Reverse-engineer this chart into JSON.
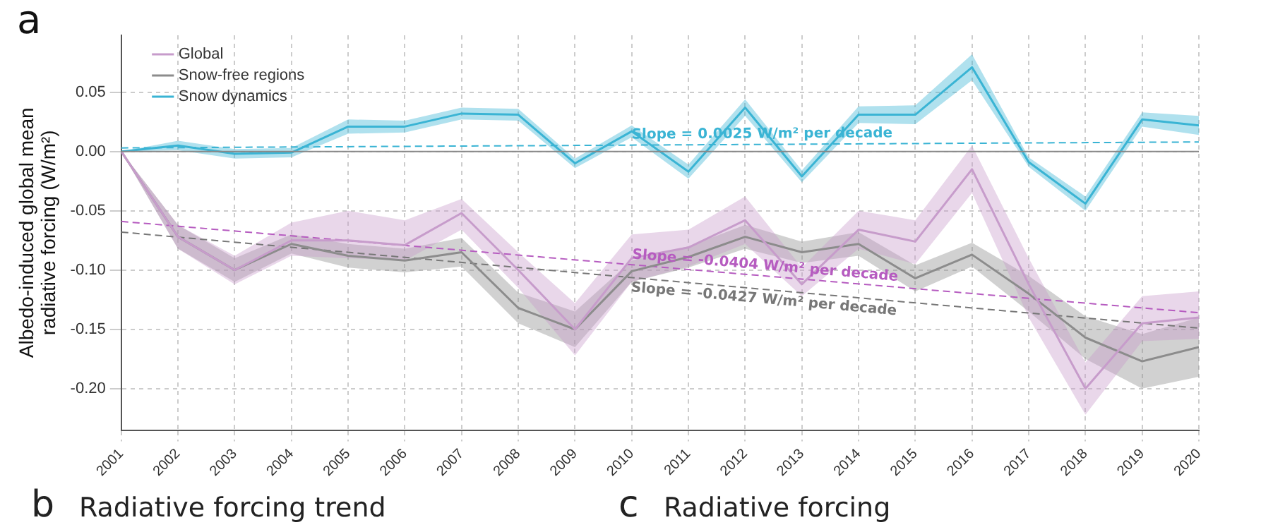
{
  "chart_data": {
    "type": "line",
    "title": "a",
    "ylabel": "Albedo-induced global mean radiative forcing (W/m²)",
    "x": [
      "2001",
      "2002",
      "2003",
      "2004",
      "2005",
      "2006",
      "2007",
      "2008",
      "2009",
      "2010",
      "2011",
      "2012",
      "2013",
      "2014",
      "2015",
      "2016",
      "2017",
      "2018",
      "2019",
      "2020"
    ],
    "xlim": [
      "2001",
      "2020"
    ],
    "xticks": [
      "2001",
      "2002",
      "2003",
      "2004",
      "2005",
      "2006",
      "2007",
      "2008",
      "2009",
      "2010",
      "2011",
      "2012",
      "2013",
      "2014",
      "2015",
      "2016",
      "2017",
      "2018",
      "2019",
      "2020"
    ],
    "ylim": [
      -0.235,
      0.098
    ],
    "yticks": [
      {
        "value": -0.2,
        "label": "-0.20"
      },
      -0.15,
      {
        "value": -0.1,
        "label": "-0.10"
      },
      -0.05,
      {
        "value": 0,
        "label": "0.00"
      },
      0.05
    ],
    "series": [
      {
        "name": "Global",
        "color": "#c79ccb",
        "values": [
          0,
          -0.072,
          -0.1,
          -0.075,
          -0.075,
          -0.079,
          -0.052,
          -0.1,
          -0.15,
          -0.09,
          -0.081,
          -0.058,
          -0.112,
          -0.066,
          -0.076,
          -0.015,
          -0.112,
          -0.2,
          -0.145,
          -0.14
        ],
        "lower": [
          0,
          -0.082,
          -0.112,
          -0.088,
          -0.09,
          -0.092,
          -0.066,
          -0.115,
          -0.172,
          -0.11,
          -0.097,
          -0.078,
          -0.122,
          -0.082,
          -0.095,
          -0.035,
          -0.14,
          -0.222,
          -0.16,
          -0.158
        ],
        "upper": [
          0,
          -0.062,
          -0.088,
          -0.06,
          -0.05,
          -0.058,
          -0.04,
          -0.085,
          -0.128,
          -0.07,
          -0.066,
          -0.038,
          -0.098,
          -0.05,
          -0.058,
          0.005,
          -0.09,
          -0.178,
          -0.122,
          -0.118
        ]
      },
      {
        "name": "Snow-free regions",
        "color": "#8c8c8c",
        "values": [
          0,
          -0.072,
          -0.1,
          -0.078,
          -0.088,
          -0.092,
          -0.085,
          -0.132,
          -0.15,
          -0.101,
          -0.089,
          -0.072,
          -0.085,
          -0.078,
          -0.107,
          -0.087,
          -0.12,
          -0.157,
          -0.177,
          -0.165
        ],
        "lower": [
          0,
          -0.082,
          -0.11,
          -0.086,
          -0.098,
          -0.102,
          -0.097,
          -0.145,
          -0.165,
          -0.11,
          -0.098,
          -0.082,
          -0.094,
          -0.088,
          -0.118,
          -0.097,
          -0.135,
          -0.175,
          -0.2,
          -0.19
        ],
        "upper": [
          0,
          -0.062,
          -0.09,
          -0.07,
          -0.078,
          -0.082,
          -0.073,
          -0.119,
          -0.135,
          -0.092,
          -0.08,
          -0.062,
          -0.076,
          -0.068,
          -0.096,
          -0.077,
          -0.105,
          -0.139,
          -0.154,
          -0.14
        ]
      },
      {
        "name": "Snow dynamics",
        "color": "#3ab4d4",
        "values": [
          0,
          0.005,
          -0.002,
          -0.001,
          0.021,
          0.021,
          0.032,
          0.031,
          -0.01,
          0.017,
          -0.017,
          0.037,
          -0.021,
          0.031,
          0.031,
          0.071,
          -0.009,
          -0.044,
          0.027,
          0.022
        ],
        "lower": [
          0,
          0.001,
          -0.006,
          -0.005,
          0.015,
          0.016,
          0.027,
          0.026,
          -0.014,
          0.012,
          -0.023,
          0.03,
          -0.026,
          0.024,
          0.023,
          0.06,
          -0.013,
          -0.05,
          0.021,
          0.014
        ],
        "upper": [
          0,
          0.009,
          0.002,
          0.003,
          0.027,
          0.026,
          0.037,
          0.036,
          -0.006,
          0.022,
          -0.011,
          0.044,
          -0.016,
          0.038,
          0.039,
          0.082,
          -0.005,
          -0.038,
          0.033,
          0.03
        ]
      },
      {
        "type": "line",
        "color": "#3ab4d4",
        "line_style": "dashed",
        "x": [
          "2001",
          "2020"
        ],
        "values": [
          0.003,
          0.008
        ]
      },
      {
        "type": "line",
        "color": "#b65cc0",
        "line_style": "dashed",
        "x": [
          "2001",
          "2020"
        ],
        "values": [
          -0.059,
          -0.136
        ]
      },
      {
        "type": "line",
        "color": "#777777",
        "line_style": "dashed",
        "x": [
          "2001",
          "2020"
        ],
        "values": [
          -0.068,
          -0.149
        ]
      }
    ],
    "ref_lines": [
      {
        "axis": "y",
        "value": 0,
        "color": "#888888"
      }
    ],
    "annotations": [
      {
        "text": "Slope = 0.0025 W/m² per decade",
        "x": "2010",
        "y": 0.008
      },
      {
        "text": "Slope = -0.0404 W/m² per decade",
        "x": "2010",
        "y": -0.093
      },
      {
        "text": "Slope = -0.0427 W/m² per decade",
        "x": "2010",
        "y": -0.109
      },
      "b",
      "Radiative forcing trend",
      "c",
      "Radiative forcing"
    ],
    "grid": true,
    "legend": "top left",
    "marker": "none",
    "line_style": "solid"
  }
}
